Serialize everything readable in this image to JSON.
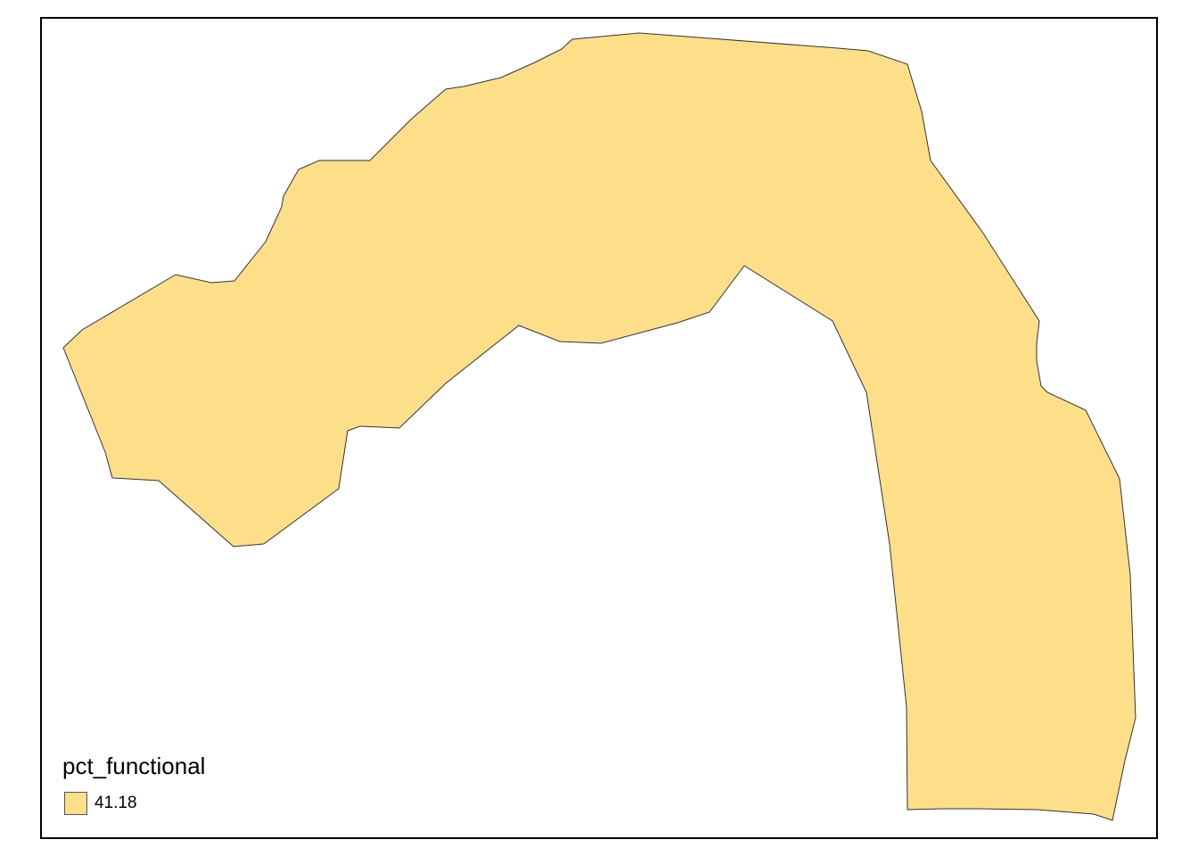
{
  "legend": {
    "title": "pct_functional",
    "items": [
      {
        "label": "41.18",
        "color": "#FDDF8A"
      }
    ]
  },
  "map": {
    "fill_color": "#FDDF8A",
    "outline_color": "#333333",
    "frame_color": "#000000",
    "background_color": "#FFFFFF"
  }
}
